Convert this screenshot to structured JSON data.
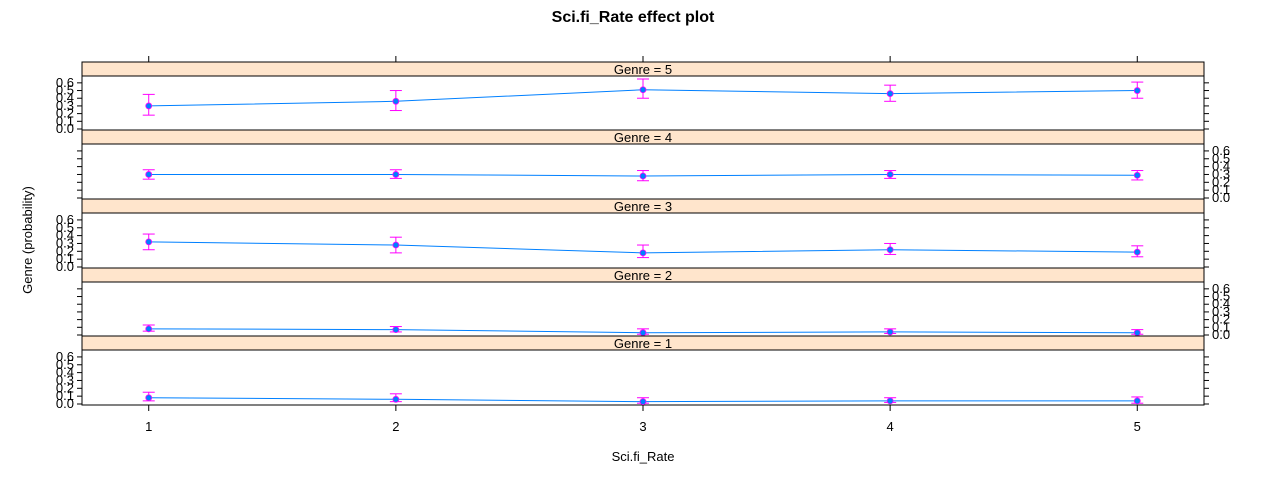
{
  "chart_data": {
    "type": "line",
    "title": "Sci.fi_Rate effect plot",
    "xlabel": "Sci.fi_Rate",
    "ylabel": "Genre (probability)",
    "x": [
      1,
      2,
      3,
      4,
      5
    ],
    "xlim": [
      0.73,
      5.27
    ],
    "ylim": [
      0,
      0.65
    ],
    "y_ticks": [
      "0.0",
      "0.1",
      "0.2",
      "0.3",
      "0.4",
      "0.5",
      "0.6"
    ],
    "panels": [
      {
        "label": "Genre = 5",
        "fit": [
          0.3,
          0.36,
          0.51,
          0.46,
          0.5
        ],
        "lower": [
          0.18,
          0.24,
          0.4,
          0.36,
          0.4
        ],
        "upper": [
          0.45,
          0.5,
          0.65,
          0.57,
          0.61
        ]
      },
      {
        "label": "Genre = 4",
        "fit": [
          0.3,
          0.3,
          0.28,
          0.3,
          0.29
        ],
        "lower": [
          0.24,
          0.25,
          0.22,
          0.25,
          0.23
        ],
        "upper": [
          0.36,
          0.36,
          0.35,
          0.35,
          0.35
        ]
      },
      {
        "label": "Genre = 3",
        "fit": [
          0.32,
          0.28,
          0.18,
          0.22,
          0.19
        ],
        "lower": [
          0.22,
          0.18,
          0.12,
          0.16,
          0.13
        ],
        "upper": [
          0.42,
          0.38,
          0.28,
          0.3,
          0.27
        ]
      },
      {
        "label": "Genre = 2",
        "fit": [
          0.08,
          0.07,
          0.03,
          0.04,
          0.03
        ],
        "lower": [
          0.05,
          0.04,
          0.01,
          0.02,
          0.01
        ],
        "upper": [
          0.13,
          0.11,
          0.08,
          0.08,
          0.07
        ]
      },
      {
        "label": "Genre = 1",
        "fit": [
          0.08,
          0.06,
          0.03,
          0.04,
          0.04
        ],
        "lower": [
          0.04,
          0.03,
          0.01,
          0.02,
          0.01
        ],
        "upper": [
          0.15,
          0.13,
          0.08,
          0.08,
          0.09
        ]
      }
    ],
    "colors": {
      "line": "#0080ff",
      "error_bar": "#ff00ff",
      "point": "#0080ff",
      "strip_fill": "#ffe5cc",
      "frame": "#000000"
    },
    "grid": false,
    "legend": "none"
  }
}
